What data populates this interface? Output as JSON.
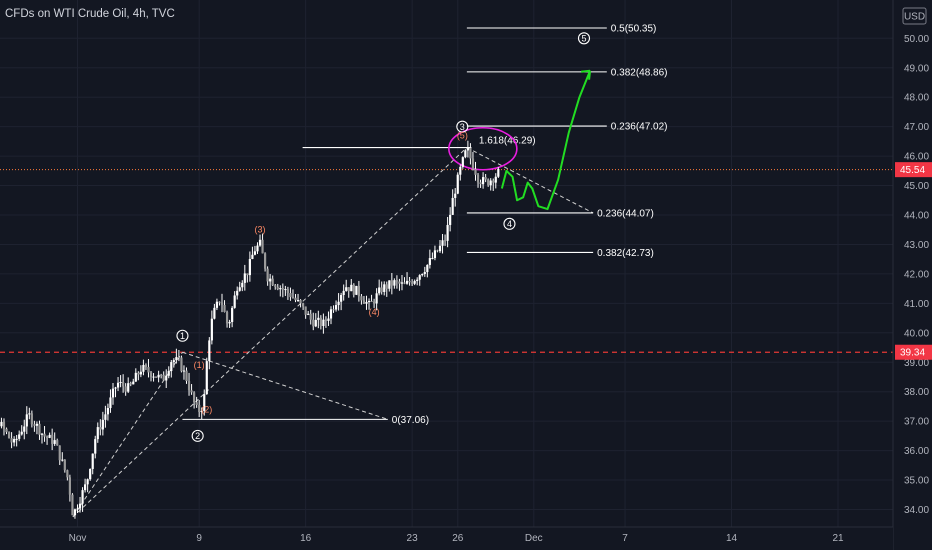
{
  "header": {
    "title": "CFDs on WTI Crude Oil, 4h, TVC"
  },
  "colors": {
    "background": "#131722",
    "candle": "#ffffff",
    "price_line": "#ff7b3a",
    "price_badge": "#f23645",
    "dashed_red": "#e53935",
    "fib_line": "#ffffff",
    "wave_circle": "#ffffff",
    "wave_sub": "#ff8a65",
    "green_projection": "#22dd22",
    "magenta": "#e91ee0",
    "axis_text": "#b2b5be"
  },
  "chart_data": {
    "type": "candlestick",
    "title": "CFDs on WTI Crude Oil, 4h, TVC",
    "currency": "USD",
    "ylim": [
      33.7,
      51.0
    ],
    "y_ticks": [
      "34.00",
      "35.00",
      "36.00",
      "37.00",
      "38.00",
      "39.00",
      "40.00",
      "41.00",
      "42.00",
      "43.00",
      "44.00",
      "45.00",
      "46.00",
      "47.00",
      "48.00",
      "49.00",
      "50.00"
    ],
    "x_ticks": [
      {
        "label": "Nov",
        "day": 0
      },
      {
        "label": "9",
        "day": 8
      },
      {
        "label": "16",
        "day": 15
      },
      {
        "label": "23",
        "day": 22
      },
      {
        "label": "26",
        "day": 25
      },
      {
        "label": "Dec",
        "day": 30
      },
      {
        "label": "7",
        "day": 36
      },
      {
        "label": "14",
        "day": 43
      },
      {
        "label": "21",
        "day": 50
      }
    ],
    "price_path": [
      [
        -7.5,
        39.5
      ],
      [
        -6.8,
        38.8
      ],
      [
        -6.0,
        37.8
      ],
      [
        -5.2,
        37.0
      ],
      [
        -4.2,
        36.2
      ],
      [
        -3.2,
        37.2
      ],
      [
        -2.2,
        36.5
      ],
      [
        -1.5,
        36.3
      ],
      [
        -0.6,
        35.0
      ],
      [
        -0.3,
        33.8
      ],
      [
        0.6,
        34.9
      ],
      [
        1.2,
        36.5
      ],
      [
        1.8,
        37.2
      ],
      [
        2.6,
        38.3
      ],
      [
        3.4,
        38.1
      ],
      [
        4.2,
        38.8
      ],
      [
        5.0,
        38.6
      ],
      [
        5.6,
        38.4
      ],
      [
        6.2,
        39.1
      ],
      [
        6.7,
        39.0
      ],
      [
        7.2,
        38.4
      ],
      [
        7.6,
        37.7
      ],
      [
        7.9,
        37.3
      ],
      [
        8.2,
        37.5
      ],
      [
        8.4,
        38.0
      ],
      [
        8.55,
        39.5
      ],
      [
        8.9,
        40.6
      ],
      [
        9.4,
        41.2
      ],
      [
        9.9,
        40.2
      ],
      [
        10.5,
        41.6
      ],
      [
        11.2,
        42.1
      ],
      [
        11.6,
        42.8
      ],
      [
        12.0,
        43.0
      ],
      [
        12.5,
        41.9
      ],
      [
        13.2,
        41.6
      ],
      [
        14.0,
        41.3
      ],
      [
        14.7,
        40.9
      ],
      [
        15.4,
        40.4
      ],
      [
        16.2,
        40.3
      ],
      [
        16.9,
        41.0
      ],
      [
        17.6,
        41.6
      ],
      [
        18.4,
        41.4
      ],
      [
        19.2,
        40.9
      ],
      [
        20.0,
        41.5
      ],
      [
        20.8,
        41.7
      ],
      [
        21.5,
        41.6
      ],
      [
        22.3,
        41.9
      ],
      [
        23.0,
        42.3
      ],
      [
        23.7,
        42.8
      ],
      [
        24.2,
        43.2
      ],
      [
        24.7,
        44.6
      ],
      [
        25.2,
        45.6
      ],
      [
        25.6,
        46.25
      ],
      [
        26.0,
        45.7
      ],
      [
        26.4,
        45.2
      ],
      [
        26.9,
        45.1
      ],
      [
        27.4,
        45.3
      ],
      [
        27.8,
        45.5
      ]
    ],
    "current_price": "45.54",
    "reference_level": "39.34",
    "fib_levels": [
      {
        "label": "0.5(50.35)",
        "value": 50.35,
        "x1": 25.6,
        "x2": 34.8
      },
      {
        "label": "0.382(48.86)",
        "value": 48.86,
        "x1": 25.6,
        "x2": 34.8
      },
      {
        "label": "0.236(47.02)",
        "value": 47.02,
        "x1": 25.6,
        "x2": 34.8
      },
      {
        "label": "1.618(46.29)",
        "value": 46.29,
        "x1": 14.8,
        "x2": 25.9
      },
      {
        "label": "0.236(44.07)",
        "value": 44.07,
        "x1": 25.6,
        "x2": 33.9
      },
      {
        "label": "0.382(42.73)",
        "value": 42.73,
        "x1": 25.6,
        "x2": 33.9
      },
      {
        "label": "0(37.06)",
        "value": 37.06,
        "x1": 6.9,
        "x2": 20.4
      }
    ],
    "wave_labels_circled": [
      {
        "label": "1",
        "x": 6.9,
        "y": 39.9
      },
      {
        "label": "2",
        "x": 7.9,
        "y": 36.5
      },
      {
        "label": "3",
        "x": 25.3,
        "y": 47.0
      },
      {
        "label": "4",
        "x": 28.4,
        "y": 43.7
      },
      {
        "label": "5",
        "x": 33.3,
        "y": 50.0
      }
    ],
    "wave_labels_sub": [
      {
        "label": "(1)",
        "x": 8.0,
        "y": 38.8
      },
      {
        "label": "(2)",
        "x": 8.5,
        "y": 37.3
      },
      {
        "label": "(3)",
        "x": 12.0,
        "y": 43.4
      },
      {
        "label": "(4)",
        "x": 19.5,
        "y": 40.6
      },
      {
        "label": "(5)",
        "x": 25.3,
        "y": 46.6
      }
    ],
    "dashed_white_lines": [
      [
        [
          -0.3,
          33.75
        ],
        [
          6.9,
          39.34
        ]
      ],
      [
        [
          -0.3,
          33.75
        ],
        [
          25.6,
          46.29
        ]
      ],
      [
        [
          6.9,
          39.34
        ],
        [
          20.4,
          37.06
        ]
      ],
      [
        [
          25.6,
          46.29
        ],
        [
          33.9,
          44.07
        ]
      ]
    ],
    "green_projection": [
      [
        27.9,
        44.9
      ],
      [
        28.2,
        45.5
      ],
      [
        28.6,
        45.3
      ],
      [
        28.9,
        44.5
      ],
      [
        29.3,
        44.6
      ],
      [
        29.6,
        45.1
      ],
      [
        29.9,
        44.9
      ],
      [
        30.3,
        44.3
      ],
      [
        30.9,
        44.2
      ],
      [
        31.6,
        45.2
      ],
      [
        32.3,
        46.8
      ],
      [
        33.0,
        48.0
      ],
      [
        33.7,
        48.9
      ]
    ]
  }
}
